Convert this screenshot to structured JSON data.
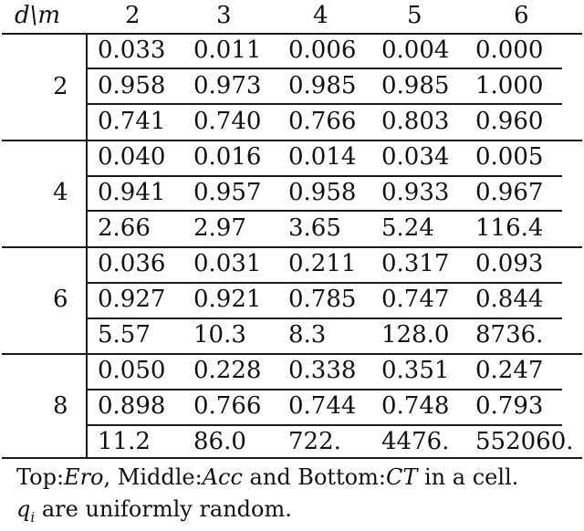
{
  "header": {
    "corner": "d\\m",
    "columns": [
      "2",
      "3",
      "4",
      "5",
      "6"
    ]
  },
  "groups": [
    {
      "d": "2",
      "rows": [
        [
          "0.033",
          "0.011",
          "0.006",
          "0.004",
          "0.000"
        ],
        [
          "0.958",
          "0.973",
          "0.985",
          "0.985",
          "1.000"
        ],
        [
          "0.741",
          "0.740",
          "0.766",
          "0.803",
          "0.960"
        ]
      ]
    },
    {
      "d": "4",
      "rows": [
        [
          "0.040",
          "0.016",
          "0.014",
          "0.034",
          "0.005"
        ],
        [
          "0.941",
          "0.957",
          "0.958",
          "0.933",
          "0.967"
        ],
        [
          "2.66",
          "2.97",
          "3.65",
          "5.24",
          "116.4"
        ]
      ]
    },
    {
      "d": "6",
      "rows": [
        [
          "0.036",
          "0.031",
          "0.211",
          "0.317",
          "0.093"
        ],
        [
          "0.927",
          "0.921",
          "0.785",
          "0.747",
          "0.844"
        ],
        [
          "5.57",
          "10.3",
          "8.3",
          "128.0",
          "8736."
        ]
      ]
    },
    {
      "d": "8",
      "rows": [
        [
          "0.050",
          "0.228",
          "0.338",
          "0.351",
          "0.247"
        ],
        [
          "0.898",
          "0.766",
          "0.744",
          "0.748",
          "0.793"
        ],
        [
          "11.2",
          "86.0",
          "722.",
          "4476.",
          "552060."
        ]
      ]
    }
  ],
  "caption": {
    "line1_top": "Top:",
    "line1_ero": "Ero",
    "line1_middle": ", Middle:",
    "line1_acc": "Acc",
    "line1_bottom": " and Bottom:",
    "line1_ct": "CT",
    "line1_end": " in a cell.",
    "line2_q": "q",
    "line2_sub": "i",
    "line2_rest": " are uniformly random."
  }
}
